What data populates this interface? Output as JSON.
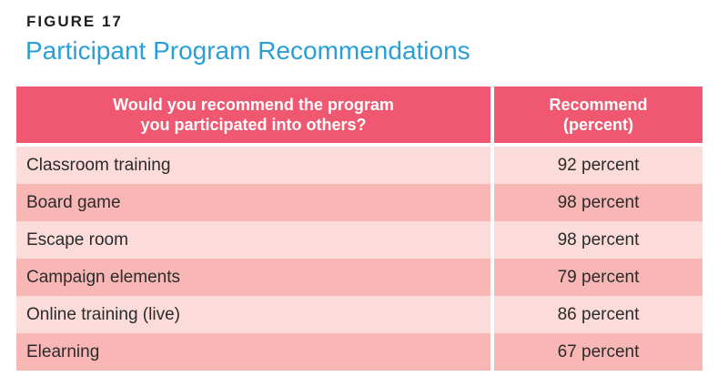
{
  "figure_label": "FIGURE 17",
  "title": "Participant Program Recommendations",
  "colors": {
    "title": "#2a9fd6",
    "header_bg": "#ef5870",
    "row_light": "#fcdcda",
    "row_dark": "#f8b7b5"
  },
  "chart_data": {
    "type": "table",
    "title": "Participant Program Recommendations",
    "columns": [
      "Would you recommend the program you participated into others?",
      "Recommend (percent)"
    ],
    "rows": [
      {
        "program": "Classroom training",
        "value": "92 percent"
      },
      {
        "program": "Board game",
        "value": "98 percent"
      },
      {
        "program": "Escape room",
        "value": "98 percent"
      },
      {
        "program": "Campaign elements",
        "value": "79 percent"
      },
      {
        "program": "Online training (live)",
        "value": "86 percent"
      },
      {
        "program": "Elearning",
        "value": "67 percent"
      }
    ]
  }
}
